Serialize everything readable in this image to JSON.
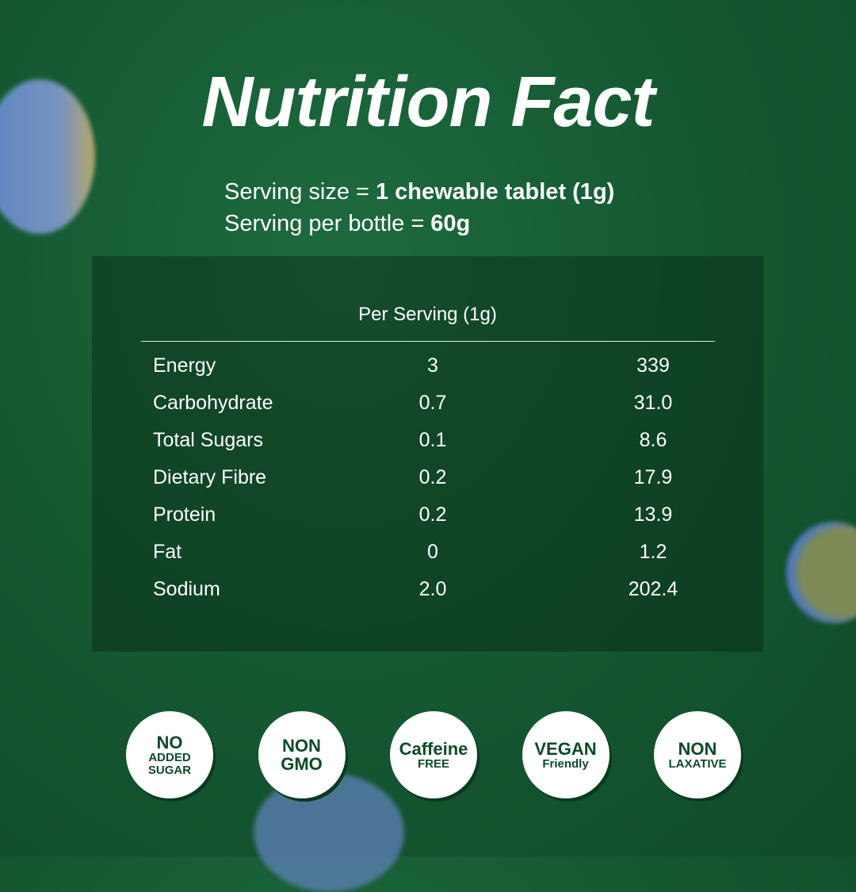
{
  "header": {
    "title": "Nutrition Fact"
  },
  "serving": [
    {
      "label": "Serving size =",
      "value": "1 chewable tablet (1g)"
    },
    {
      "label": "Serving per bottle =",
      "value": "60g"
    }
  ],
  "table": {
    "header": "Per Serving (1g)",
    "rows": [
      [
        "Energy",
        "3",
        "339"
      ],
      [
        "Carbohydrate",
        "0.7",
        "31.0"
      ],
      [
        "Total Sugars",
        "0.1",
        "8.6"
      ],
      [
        "Dietary Fibre",
        "0.2",
        "17.9"
      ],
      [
        "Protein",
        "0.2",
        "13.9"
      ],
      [
        "Fat",
        "0",
        "1.2"
      ],
      [
        "Sodium",
        "2.0",
        "202.4"
      ]
    ]
  },
  "badges": [
    [
      "NO",
      "ADDED",
      "SUGAR"
    ],
    [
      "NON",
      "GMO"
    ],
    [
      "Caffeine",
      "FREE"
    ],
    [
      "VEGAN",
      "Friendly"
    ],
    [
      "NON",
      "LAXATIVE"
    ]
  ]
}
